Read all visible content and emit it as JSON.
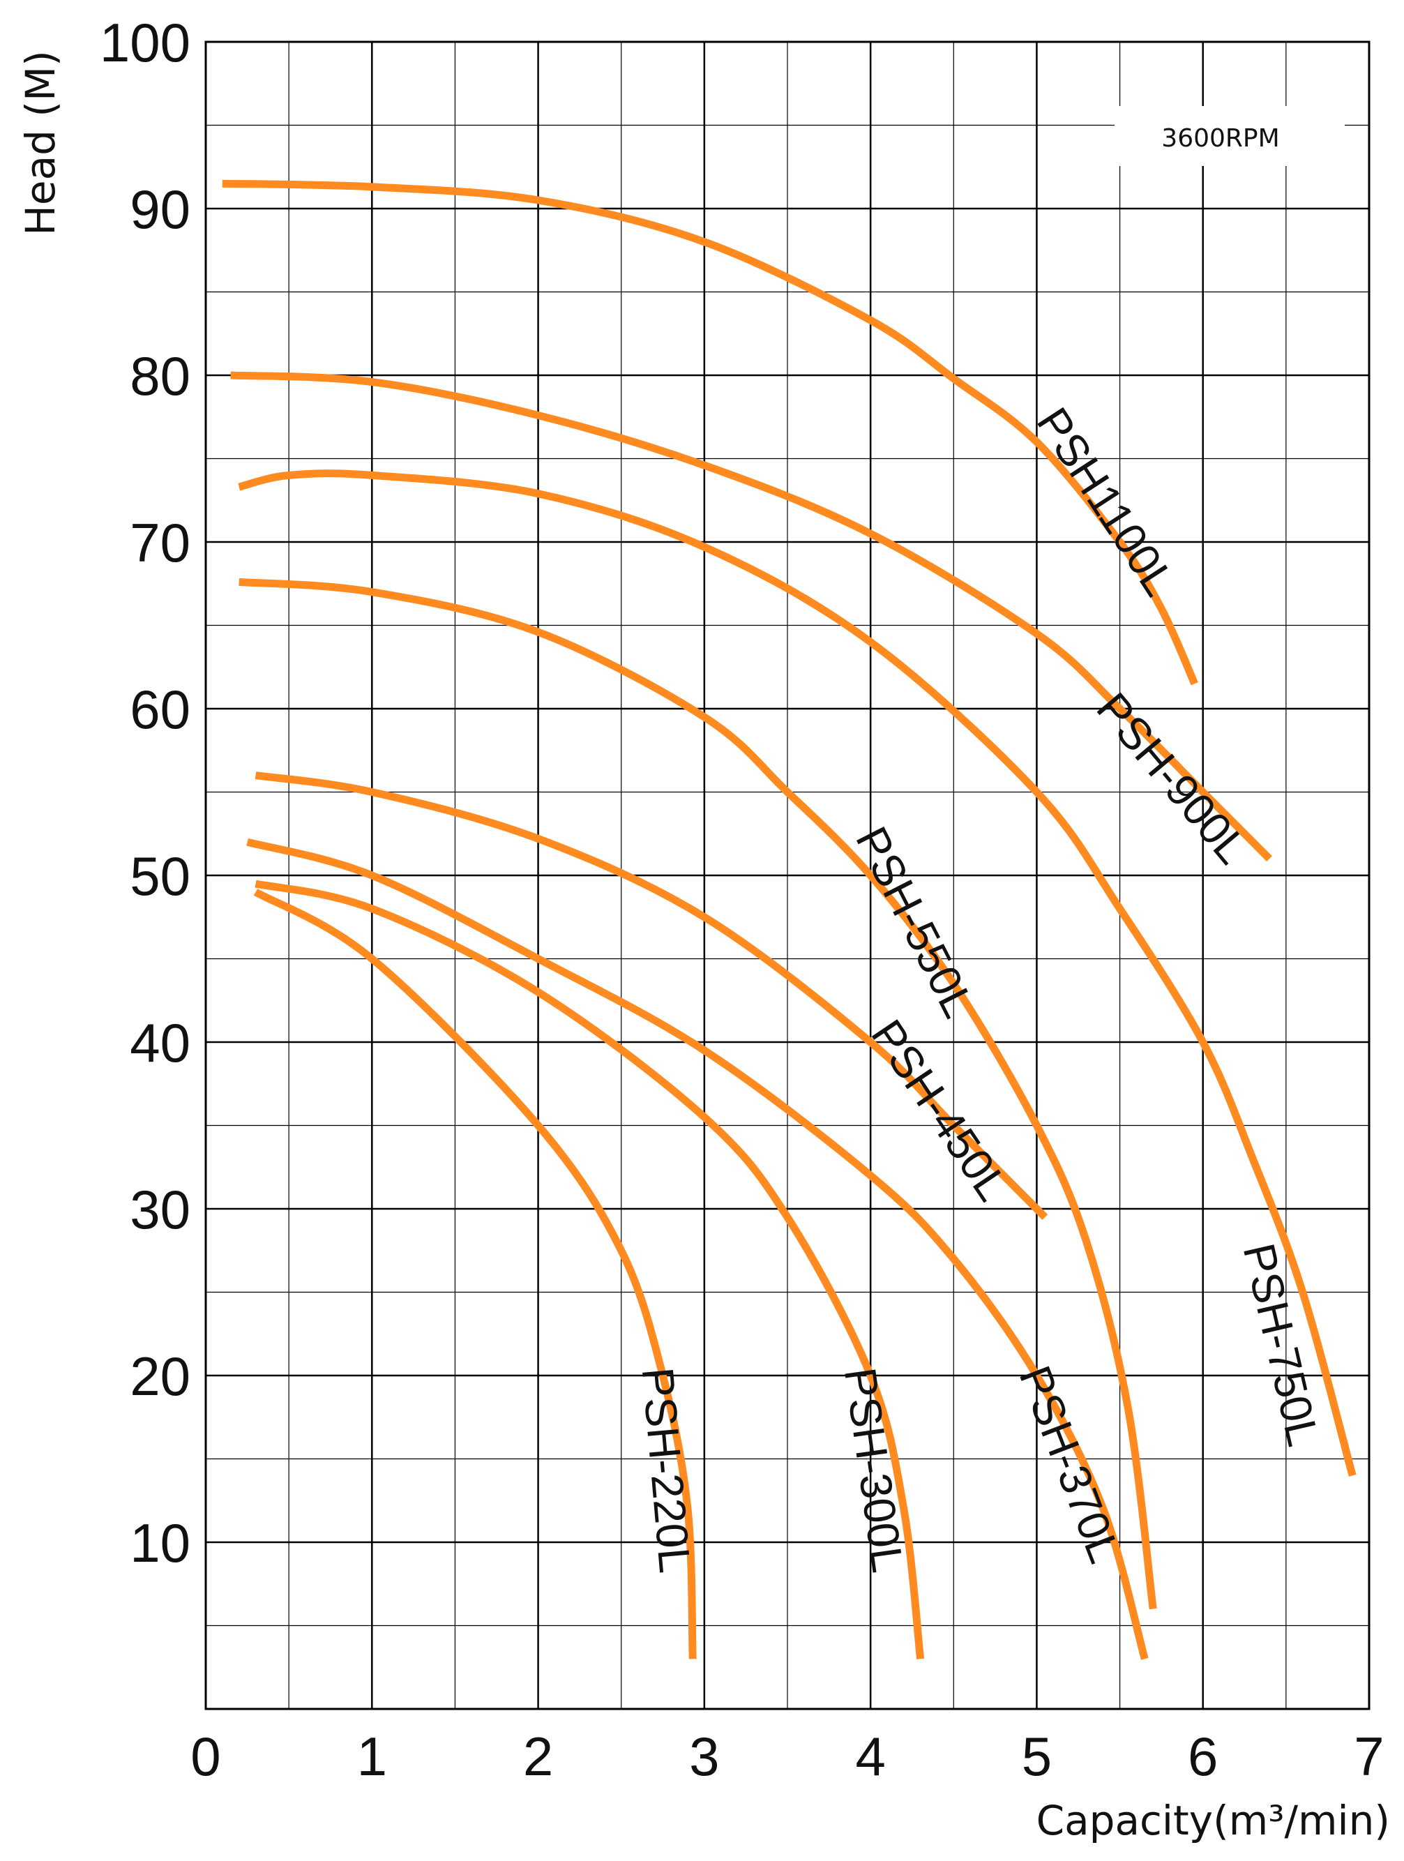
{
  "chart_data": {
    "type": "line",
    "title": "",
    "xlabel": "Capacity(m³/min)",
    "ylabel": "Head (M)",
    "annotation": "3600RPM",
    "xlim": [
      0,
      7
    ],
    "ylim": [
      0,
      100
    ],
    "xticks": [
      "0",
      "1",
      "2",
      "3",
      "4",
      "5",
      "6",
      "7"
    ],
    "yticks": [
      "10",
      "20",
      "30",
      "40",
      "50",
      "60",
      "70",
      "80",
      "90",
      "100"
    ],
    "minor_grid_x": 0.5,
    "minor_grid_y": 5,
    "grid": true,
    "line_color": "#FF8A1F",
    "series": [
      {
        "name": "PSH1100L",
        "points": [
          [
            0.1,
            91.5
          ],
          [
            1,
            91.3
          ],
          [
            2,
            90.5
          ],
          [
            3,
            88
          ],
          [
            4,
            83.3
          ],
          [
            4.5,
            79.8
          ],
          [
            5,
            76
          ],
          [
            5.5,
            70
          ],
          [
            5.75,
            66
          ],
          [
            5.95,
            61.5
          ]
        ]
      },
      {
        "name": "PSH-900L",
        "points": [
          [
            0.15,
            80
          ],
          [
            1,
            79.6
          ],
          [
            2,
            77.6
          ],
          [
            3,
            74.6
          ],
          [
            4,
            70.5
          ],
          [
            5,
            64.5
          ],
          [
            5.5,
            60
          ],
          [
            6,
            55
          ],
          [
            6.2,
            53
          ],
          [
            6.4,
            51
          ]
        ]
      },
      {
        "name": "PSH-750L",
        "points": [
          [
            0.2,
            73.3
          ],
          [
            0.5,
            74
          ],
          [
            1,
            74
          ],
          [
            2,
            72.9
          ],
          [
            3,
            69.7
          ],
          [
            4,
            64
          ],
          [
            5,
            55
          ],
          [
            5.5,
            48
          ],
          [
            6,
            40
          ],
          [
            6.3,
            33
          ],
          [
            6.6,
            25
          ],
          [
            6.9,
            14
          ]
        ]
      },
      {
        "name": "PSH-550L",
        "points": [
          [
            0.2,
            67.6
          ],
          [
            1,
            67
          ],
          [
            2,
            64.6
          ],
          [
            3,
            59.5
          ],
          [
            3.5,
            55
          ],
          [
            4,
            50
          ],
          [
            4.5,
            43.5
          ],
          [
            5,
            35
          ],
          [
            5.3,
            28
          ],
          [
            5.55,
            18
          ],
          [
            5.7,
            6
          ]
        ]
      },
      {
        "name": "PSH-450L",
        "points": [
          [
            0.3,
            56
          ],
          [
            1,
            55
          ],
          [
            2,
            52.2
          ],
          [
            3,
            47.5
          ],
          [
            4,
            40
          ],
          [
            4.5,
            35
          ],
          [
            5.05,
            29.5
          ]
        ]
      },
      {
        "name": "PSH-370L",
        "points": [
          [
            0.25,
            52
          ],
          [
            1,
            50
          ],
          [
            2,
            45
          ],
          [
            3,
            39.5
          ],
          [
            4,
            32
          ],
          [
            4.5,
            27
          ],
          [
            5,
            20
          ],
          [
            5.4,
            12
          ],
          [
            5.65,
            3
          ]
        ]
      },
      {
        "name": "PSH-300L",
        "points": [
          [
            0.3,
            49.5
          ],
          [
            1,
            48
          ],
          [
            2,
            43
          ],
          [
            3,
            35.5
          ],
          [
            3.5,
            29.5
          ],
          [
            4,
            20
          ],
          [
            4.2,
            12
          ],
          [
            4.3,
            3
          ]
        ]
      },
      {
        "name": "PSH-220L",
        "points": [
          [
            0.3,
            49
          ],
          [
            1,
            45
          ],
          [
            2,
            35
          ],
          [
            2.5,
            27.5
          ],
          [
            2.75,
            20
          ],
          [
            2.9,
            12
          ],
          [
            2.93,
            3
          ]
        ]
      }
    ],
    "labels": [
      {
        "text": "PSH1100L",
        "x": 5.4,
        "y": 72.3,
        "angle": 57
      },
      {
        "text": "PSH-900L",
        "x": 5.8,
        "y": 55.7,
        "angle": 50
      },
      {
        "text": "PSH-750L",
        "x": 6.45,
        "y": 21.8,
        "angle": 77
      },
      {
        "text": "PSH-550L",
        "x": 4.25,
        "y": 47.1,
        "angle": 63
      },
      {
        "text": "PSH-450L",
        "x": 4.4,
        "y": 35.8,
        "angle": 56
      },
      {
        "text": "PSH-370L",
        "x": 5.18,
        "y": 14.6,
        "angle": 69
      },
      {
        "text": "PSH-300L",
        "x": 4.0,
        "y": 14.3,
        "angle": 82
      },
      {
        "text": "PSH-220L",
        "x": 2.75,
        "y": 14.3,
        "angle": 85
      }
    ]
  }
}
